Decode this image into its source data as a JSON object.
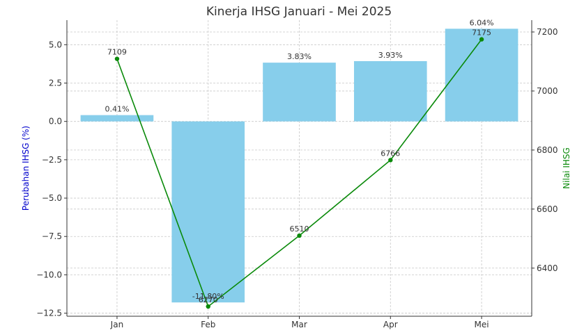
{
  "chart_data": {
    "type": "bar",
    "title": "Kinerja IHSG Januari - Mei 2025",
    "categories": [
      "Jan",
      "Feb",
      "Mar",
      "Apr",
      "Mei"
    ],
    "ylabel_left": "Perubahan IHSG (%)",
    "ylabel_right": "Nilai IHSG",
    "left_axis": {
      "ylim": [
        -12.7,
        6.6
      ],
      "ticks": [
        5.0,
        2.5,
        0.0,
        -2.5,
        -5.0,
        -7.5,
        -10.0,
        -12.5
      ],
      "tick_labels": [
        "5.0",
        "2.5",
        "0.0",
        "−2.5",
        "−5.0",
        "−7.5",
        "−10.0",
        "−12.5"
      ]
    },
    "right_axis": {
      "ylim": [
        6237,
        7240
      ],
      "ticks": [
        7200,
        7000,
        6800,
        6600,
        6400
      ],
      "tick_labels": [
        "7200",
        "7000",
        "6800",
        "6600",
        "6400"
      ]
    },
    "series": [
      {
        "name": "",
        "type": "bar",
        "axis": "left",
        "color": "#87ceeb",
        "values": [
          0.41,
          -11.8,
          3.83,
          3.93,
          6.04
        ],
        "value_labels": [
          "0.41%",
          "-11.80%",
          "3.83%",
          "3.93%",
          "6.04%"
        ]
      },
      {
        "name": "",
        "type": "line",
        "axis": "right",
        "color": "#0a8a0a",
        "values": [
          7109,
          6270,
          6510,
          6766,
          7175
        ],
        "value_labels": [
          "7109",
          "6270",
          "6510",
          "6766",
          "7175"
        ]
      }
    ],
    "grid": true,
    "legend": "none",
    "colors": {
      "bar": "#87ceeb",
      "line": "#0a8a0a",
      "left_axis_label": "#0000cc",
      "right_axis_label": "#0a8a0a",
      "grid": "#c8c8c8",
      "axis": "#333333"
    }
  }
}
